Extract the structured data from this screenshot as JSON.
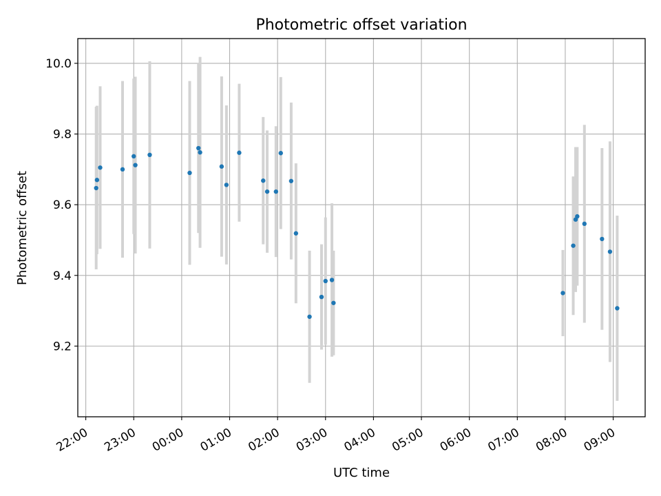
{
  "chart_data": {
    "type": "scatter",
    "title": "Photometric offset variation",
    "xlabel": "UTC time",
    "ylabel": "Photometric offset",
    "grid": true,
    "xlim": [
      "21:50",
      "33:40"
    ],
    "ylim": [
      9.0,
      10.07
    ],
    "x_ticks": [
      {
        "t": "22:00",
        "label": "22:00"
      },
      {
        "t": "23:00",
        "label": "23:00"
      },
      {
        "t": "24:00",
        "label": "00:00"
      },
      {
        "t": "25:00",
        "label": "01:00"
      },
      {
        "t": "26:00",
        "label": "02:00"
      },
      {
        "t": "27:00",
        "label": "03:00"
      },
      {
        "t": "28:00",
        "label": "04:00"
      },
      {
        "t": "29:00",
        "label": "05:00"
      },
      {
        "t": "30:00",
        "label": "06:00"
      },
      {
        "t": "31:00",
        "label": "07:00"
      },
      {
        "t": "32:00",
        "label": "08:00"
      },
      {
        "t": "33:00",
        "label": "09:00"
      }
    ],
    "y_ticks": [
      {
        "v": 9.2,
        "label": "9.2"
      },
      {
        "v": 9.4,
        "label": "9.4"
      },
      {
        "v": 9.6,
        "label": "9.6"
      },
      {
        "v": 9.8,
        "label": "9.8"
      },
      {
        "v": 10.0,
        "label": "10.0"
      }
    ],
    "colors": {
      "point": "#1f77b4",
      "errorbar": "#d3d3d3",
      "grid": "#b0b0b0"
    },
    "points": [
      {
        "x": "22:13",
        "y": 9.647,
        "err": 0.23
      },
      {
        "x": "22:14",
        "y": 9.67,
        "err": 0.21
      },
      {
        "x": "22:18",
        "y": 9.705,
        "err": 0.23
      },
      {
        "x": "22:46",
        "y": 9.7,
        "err": 0.25
      },
      {
        "x": "23:00",
        "y": 9.737,
        "err": 0.22
      },
      {
        "x": "23:02",
        "y": 9.712,
        "err": 0.25
      },
      {
        "x": "23:20",
        "y": 9.741,
        "err": 0.265
      },
      {
        "x": "24:10",
        "y": 9.69,
        "err": 0.26
      },
      {
        "x": "24:21",
        "y": 9.76,
        "err": 0.24
      },
      {
        "x": "24:23",
        "y": 9.748,
        "err": 0.27
      },
      {
        "x": "24:50",
        "y": 9.708,
        "err": 0.255
      },
      {
        "x": "24:56",
        "y": 9.656,
        "err": 0.225
      },
      {
        "x": "25:12",
        "y": 9.747,
        "err": 0.195
      },
      {
        "x": "25:42",
        "y": 9.668,
        "err": 0.18
      },
      {
        "x": "25:47",
        "y": 9.637,
        "err": 0.173
      },
      {
        "x": "25:58",
        "y": 9.637,
        "err": 0.185
      },
      {
        "x": "26:04",
        "y": 9.746,
        "err": 0.215
      },
      {
        "x": "26:17",
        "y": 9.667,
        "err": 0.222
      },
      {
        "x": "26:23",
        "y": 9.519,
        "err": 0.198
      },
      {
        "x": "26:40",
        "y": 9.283,
        "err": 0.187
      },
      {
        "x": "26:55",
        "y": 9.339,
        "err": 0.149
      },
      {
        "x": "27:00",
        "y": 9.384,
        "err": 0.18
      },
      {
        "x": "27:08",
        "y": 9.387,
        "err": 0.217
      },
      {
        "x": "27:10",
        "y": 9.322,
        "err": 0.148
      },
      {
        "x": "31:57",
        "y": 9.35,
        "err": 0.122
      },
      {
        "x": "32:10",
        "y": 9.484,
        "err": 0.196
      },
      {
        "x": "32:13",
        "y": 9.558,
        "err": 0.205
      },
      {
        "x": "32:15",
        "y": 9.567,
        "err": 0.196
      },
      {
        "x": "32:24",
        "y": 9.546,
        "err": 0.28
      },
      {
        "x": "32:46",
        "y": 9.503,
        "err": 0.257
      },
      {
        "x": "32:56",
        "y": 9.467,
        "err": 0.312
      },
      {
        "x": "33:05",
        "y": 9.307,
        "err": 0.262
      }
    ]
  }
}
